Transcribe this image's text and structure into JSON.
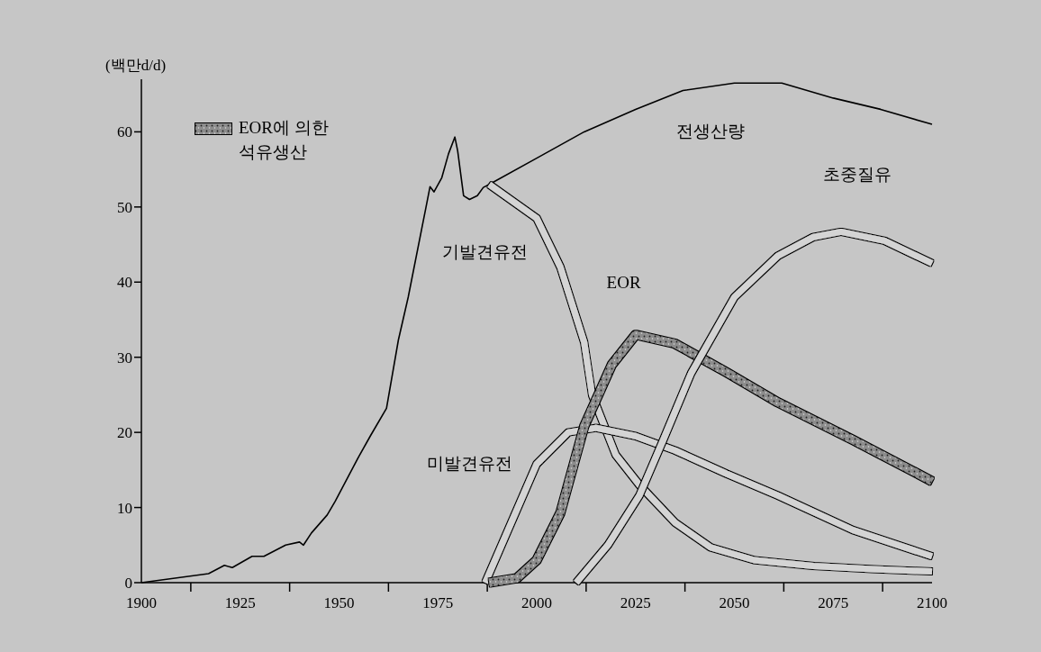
{
  "chart_data": {
    "type": "line",
    "ylabel": "(백만d/d)",
    "xlim": [
      1900,
      2100
    ],
    "xticks": [
      1900,
      1925,
      1950,
      1975,
      2000,
      2025,
      2050,
      2075,
      2100
    ],
    "ylim": [
      0,
      67
    ],
    "yticks": [
      0,
      10,
      20,
      30,
      40,
      50,
      60
    ],
    "grid": false,
    "legend": "top left",
    "series": [
      {
        "color": "#000000",
        "x": [
          1900,
          1917,
          1921,
          1923,
          1928,
          1931,
          1936.5,
          1940,
          1941,
          1943,
          1947,
          1949,
          1955,
          1958,
          1962,
          1965,
          1967.5,
          1972,
          1973,
          1974,
          1976,
          1977.7,
          1979.3,
          1980,
          1981.5,
          1983,
          1985,
          1986.5,
          1988,
          2000,
          2012,
          2025,
          2037,
          2050,
          2062,
          2075,
          2087,
          2100
        ],
        "values": [
          0,
          1.2,
          2.3,
          2,
          3.5,
          3.5,
          5,
          5.4,
          5,
          6.6,
          9,
          10.8,
          16.8,
          19.6,
          23.2,
          32.3,
          38,
          50,
          52.7,
          52,
          53.9,
          57.1,
          59.3,
          57.5,
          51.5,
          51,
          51.5,
          52.6,
          53,
          56.5,
          60,
          63,
          65.5,
          66.5,
          66.5,
          64.5,
          63,
          61
        ]
      },
      {
        "color": "#d4d4d4",
        "x": [
          1988,
          2000,
          2006,
          2012,
          2014,
          2020,
          2026,
          2035,
          2044,
          2055,
          2070,
          2085,
          2100
        ],
        "values": [
          53,
          48.5,
          42,
          32,
          25,
          17,
          13,
          8,
          4.7,
          3,
          2.2,
          1.8,
          1.5
        ]
      },
      {
        "color": "#d4d4d4",
        "x": [
          1987,
          2000,
          2008,
          2015,
          2025,
          2035,
          2048,
          2061,
          2080,
          2100
        ],
        "values": [
          0,
          15.8,
          20,
          20.6,
          19.5,
          17.6,
          14.5,
          11.6,
          7,
          3.5
        ]
      },
      {
        "name": "EOR에 의한\n석유생산",
        "color": "#8c8c8c",
        "x": [
          1988,
          1995,
          2000,
          2006,
          2012,
          2019,
          2025,
          2035,
          2048,
          2061,
          2080,
          2100
        ],
        "values": [
          0,
          0.6,
          3,
          9.3,
          20.8,
          29,
          33,
          31.8,
          28,
          24,
          19,
          13.5
        ]
      },
      {
        "color": "#d4d4d4",
        "x": [
          2010,
          2018,
          2026,
          2032,
          2039,
          2050,
          2061,
          2070,
          2077,
          2088,
          2100
        ],
        "values": [
          0,
          5,
          11.6,
          19,
          27.8,
          38,
          43.5,
          46,
          46.7,
          45.5,
          42.5
        ]
      }
    ],
    "annotations": [
      "전생산량",
      "기발견유전",
      "EOR",
      "미발견유전",
      "초중질유"
    ]
  }
}
